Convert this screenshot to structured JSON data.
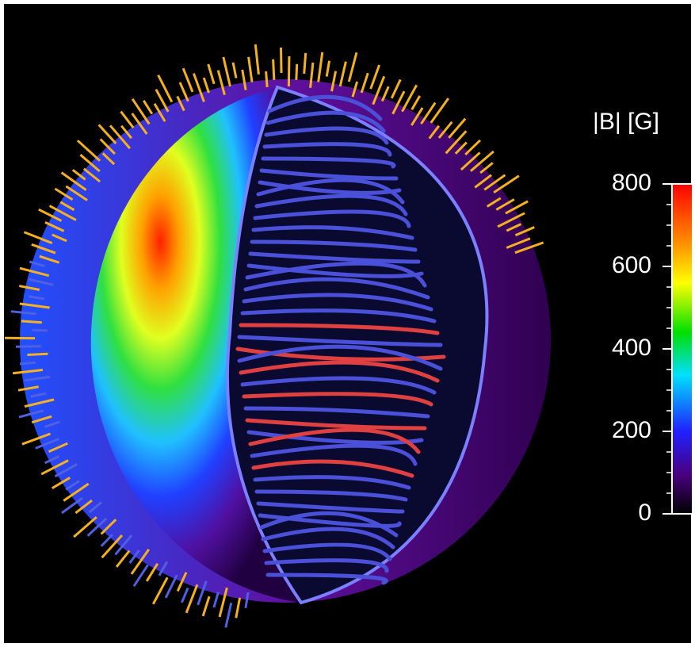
{
  "colorbar": {
    "label": "|B| [G]",
    "range": [
      0,
      800
    ],
    "ticks": [
      0,
      200,
      400,
      600,
      800
    ],
    "minor_ticks": [
      50,
      100,
      150,
      250,
      300,
      350,
      450,
      500,
      550,
      650,
      700,
      750
    ]
  }
}
